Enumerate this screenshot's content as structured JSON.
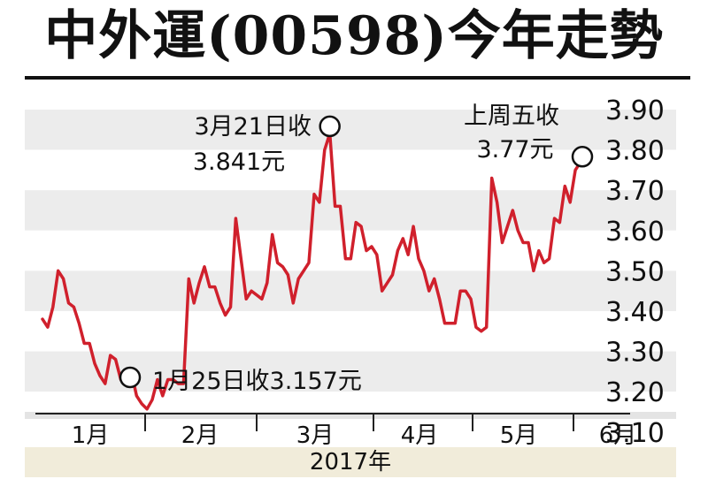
{
  "title": "中外運(00598)今年走勢",
  "chart_data": {
    "type": "line",
    "xlabel": "2017年",
    "ylabel": "",
    "ylim": [
      3.1,
      3.9
    ],
    "yticks": [
      "3.90",
      "3.80",
      "3.70",
      "3.60",
      "3.50",
      "3.40",
      "3.30",
      "3.20",
      "3.10"
    ],
    "xticks": [
      "1月",
      "2月",
      "3月",
      "4月",
      "5月",
      "6月"
    ],
    "grid": true,
    "line_color": "#d0202c",
    "series": [
      {
        "values": [
          3.38,
          3.36,
          3.41,
          3.5,
          3.48,
          3.42,
          3.41,
          3.37,
          3.32,
          3.32,
          3.27,
          3.24,
          3.22,
          3.29,
          3.28,
          3.23,
          3.22,
          3.25,
          3.19,
          3.17,
          3.157,
          3.18,
          3.23,
          3.19,
          3.23,
          3.23,
          3.22,
          3.22,
          3.48,
          3.42,
          3.47,
          3.51,
          3.46,
          3.46,
          3.42,
          3.39,
          3.41,
          3.63,
          3.53,
          3.43,
          3.45,
          3.44,
          3.43,
          3.47,
          3.59,
          3.52,
          3.51,
          3.49,
          3.42,
          3.48,
          3.5,
          3.52,
          3.69,
          3.67,
          3.8,
          3.841,
          3.66,
          3.66,
          3.53,
          3.53,
          3.62,
          3.61,
          3.55,
          3.56,
          3.54,
          3.45,
          3.47,
          3.49,
          3.55,
          3.58,
          3.54,
          3.61,
          3.53,
          3.5,
          3.45,
          3.48,
          3.43,
          3.37,
          3.37,
          3.37,
          3.45,
          3.45,
          3.43,
          3.36,
          3.35,
          3.36,
          3.73,
          3.67,
          3.57,
          3.61,
          3.65,
          3.6,
          3.57,
          3.57,
          3.5,
          3.55,
          3.52,
          3.53,
          3.63,
          3.62,
          3.71,
          3.67,
          3.75,
          3.77
        ]
      }
    ],
    "annotations": [
      {
        "label1": "3月21日收",
        "label2": "3.841元",
        "index": 55
      },
      {
        "label1": "1月25日收3.157元",
        "label2": "",
        "index": 20
      },
      {
        "label1": "上周五收",
        "label2": "3.77元",
        "index": 103
      }
    ]
  }
}
